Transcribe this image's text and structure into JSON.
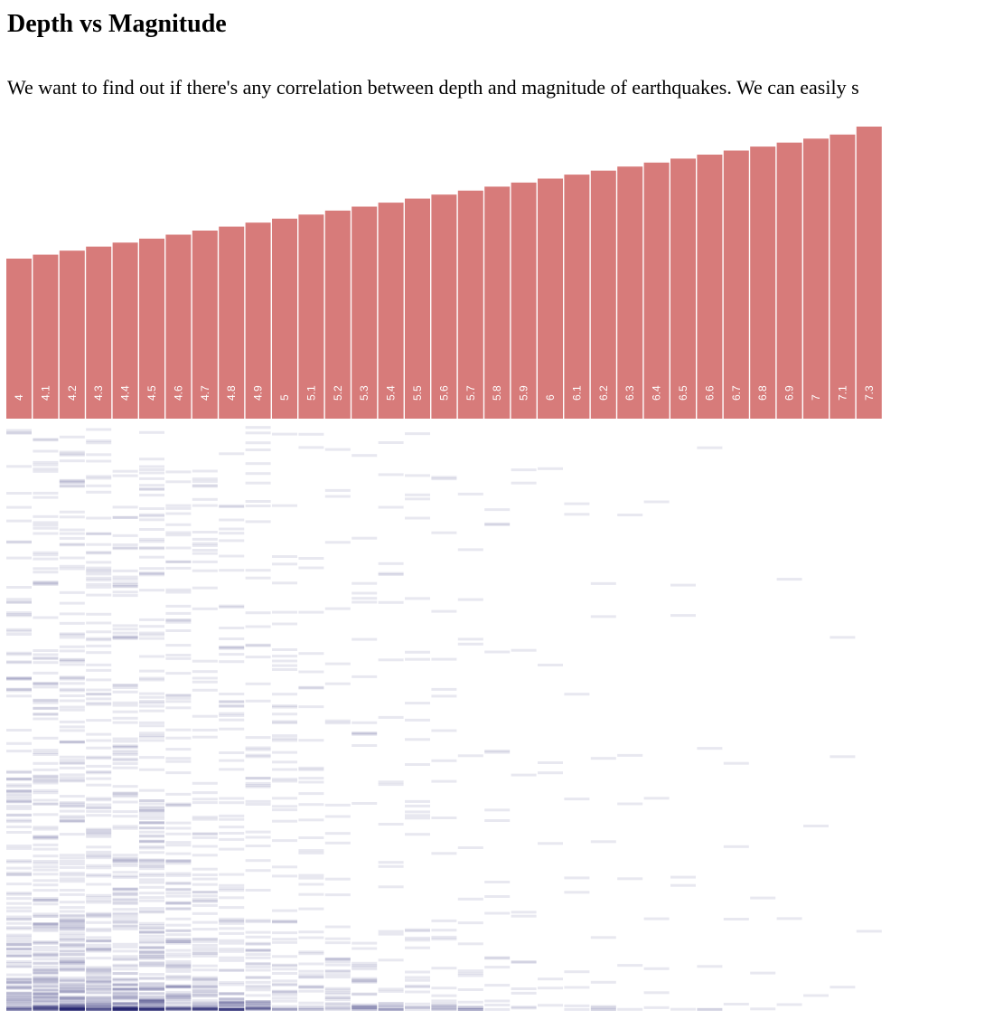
{
  "page": {
    "title": "Depth vs Magnitude",
    "intro": "We want to find out if there's any correlation between depth and magnitude of earthquakes. We can easily s"
  },
  "colors": {
    "bar": "#d77b7a",
    "depth_tick": "#191970",
    "background": "#ffffff"
  },
  "chart_data": {
    "type": "bar",
    "categories": [
      "4",
      "4.1",
      "4.2",
      "4.3",
      "4.4",
      "4.5",
      "4.6",
      "4.7",
      "4.8",
      "4.9",
      "5",
      "5.1",
      "5.2",
      "5.3",
      "5.4",
      "5.5",
      "5.6",
      "5.7",
      "5.8",
      "5.9",
      "6",
      "6.1",
      "6.2",
      "6.3",
      "6.4",
      "6.5",
      "6.6",
      "6.7",
      "6.8",
      "6.9",
      "7",
      "7.1",
      "7.3"
    ],
    "values": [
      4,
      4.1,
      4.2,
      4.3,
      4.4,
      4.5,
      4.6,
      4.7,
      4.8,
      4.9,
      5,
      5.1,
      5.2,
      5.3,
      5.4,
      5.5,
      5.6,
      5.7,
      5.8,
      5.9,
      6,
      6.1,
      6.2,
      6.3,
      6.4,
      6.5,
      6.6,
      6.7,
      6.8,
      6.9,
      7,
      7.1,
      7.3
    ],
    "bar_scale_min": 0,
    "depth_strip": {
      "description_type": "density ticks",
      "tick_opacity": 0.1,
      "counts_per_magnitude": [
        140,
        165,
        190,
        150,
        160,
        175,
        120,
        100,
        95,
        80,
        60,
        45,
        40,
        38,
        30,
        34,
        28,
        22,
        18,
        12,
        8,
        10,
        10,
        6,
        6,
        5,
        5,
        4,
        3,
        3,
        2,
        3,
        1
      ]
    }
  }
}
